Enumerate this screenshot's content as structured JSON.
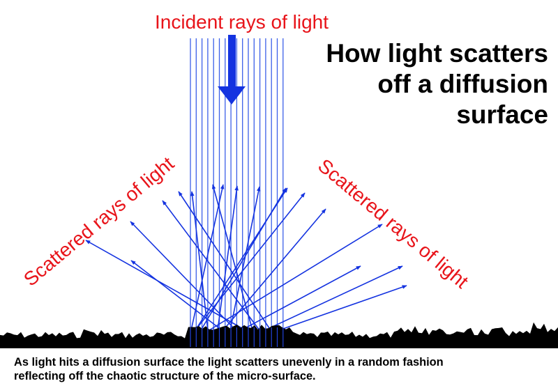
{
  "labels": {
    "incident": "Incident rays of light",
    "scattered_left": "Scattered rays of light",
    "scattered_right": "Scattered rays of light"
  },
  "title": {
    "line1": "How light scatters",
    "line2": "off a diffusion",
    "line3": "surface"
  },
  "caption": {
    "line1": "As light hits a diffusion surface the light scatters unevenly in a random fashion",
    "line2": "reflecting off the chaotic structure of the micro-surface."
  },
  "colors": {
    "text_label": "#e8141a",
    "incident_rays": "#3b5fe8",
    "scattered_rays": "#1433e0",
    "direction_arrow": "#1433e0",
    "surface": "#000000",
    "background": "#ffffff"
  },
  "icons": {
    "direction_arrow": "arrow-down-icon"
  }
}
